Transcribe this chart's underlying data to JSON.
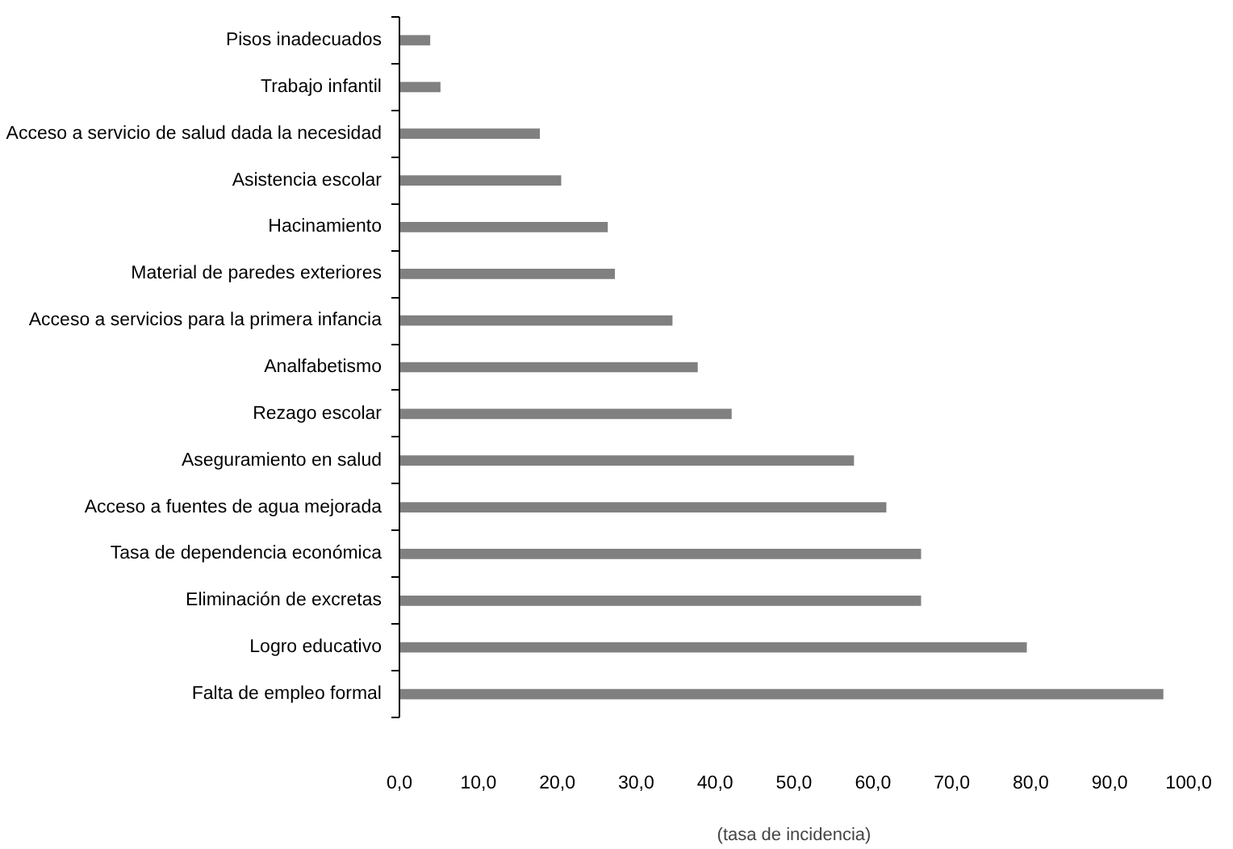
{
  "chart_data": {
    "type": "bar",
    "orientation": "horizontal",
    "xlabel": "(tasa de incidencia)",
    "categories": [
      "Pisos inadecuados",
      "Trabajo infantil",
      "Acceso a servicio de salud dada la necesidad",
      "Asistencia escolar",
      "Hacinamiento",
      "Material de paredes exteriores",
      "Acceso a servicios para la primera infancia",
      "Analfabetismo",
      "Rezago escolar",
      "Aseguramiento en salud",
      "Acceso a fuentes de agua mejorada",
      "Tasa de dependencia económica",
      "Eliminación de excretas",
      "Logro educativo",
      "Falta de empleo formal"
    ],
    "values": [
      3.9,
      5.2,
      17.8,
      20.5,
      26.4,
      27.3,
      34.6,
      37.8,
      42.1,
      57.6,
      61.7,
      66.1,
      66.1,
      79.5,
      96.8
    ],
    "color": "#808080",
    "xlim": [
      0,
      100
    ],
    "xticks": [
      {
        "value": 0,
        "label": "0,0"
      },
      {
        "value": 10,
        "label": "10,0"
      },
      {
        "value": 20,
        "label": "20,0"
      },
      {
        "value": 30,
        "label": "30,0"
      },
      {
        "value": 40,
        "label": "40,0"
      },
      {
        "value": 50,
        "label": "50,0"
      },
      {
        "value": 60,
        "label": "60,0"
      },
      {
        "value": 70,
        "label": "70,0"
      },
      {
        "value": 80,
        "label": "80,0"
      },
      {
        "value": 90,
        "label": "90,0"
      },
      {
        "value": 100,
        "label": "100,0"
      }
    ],
    "grid": false
  }
}
